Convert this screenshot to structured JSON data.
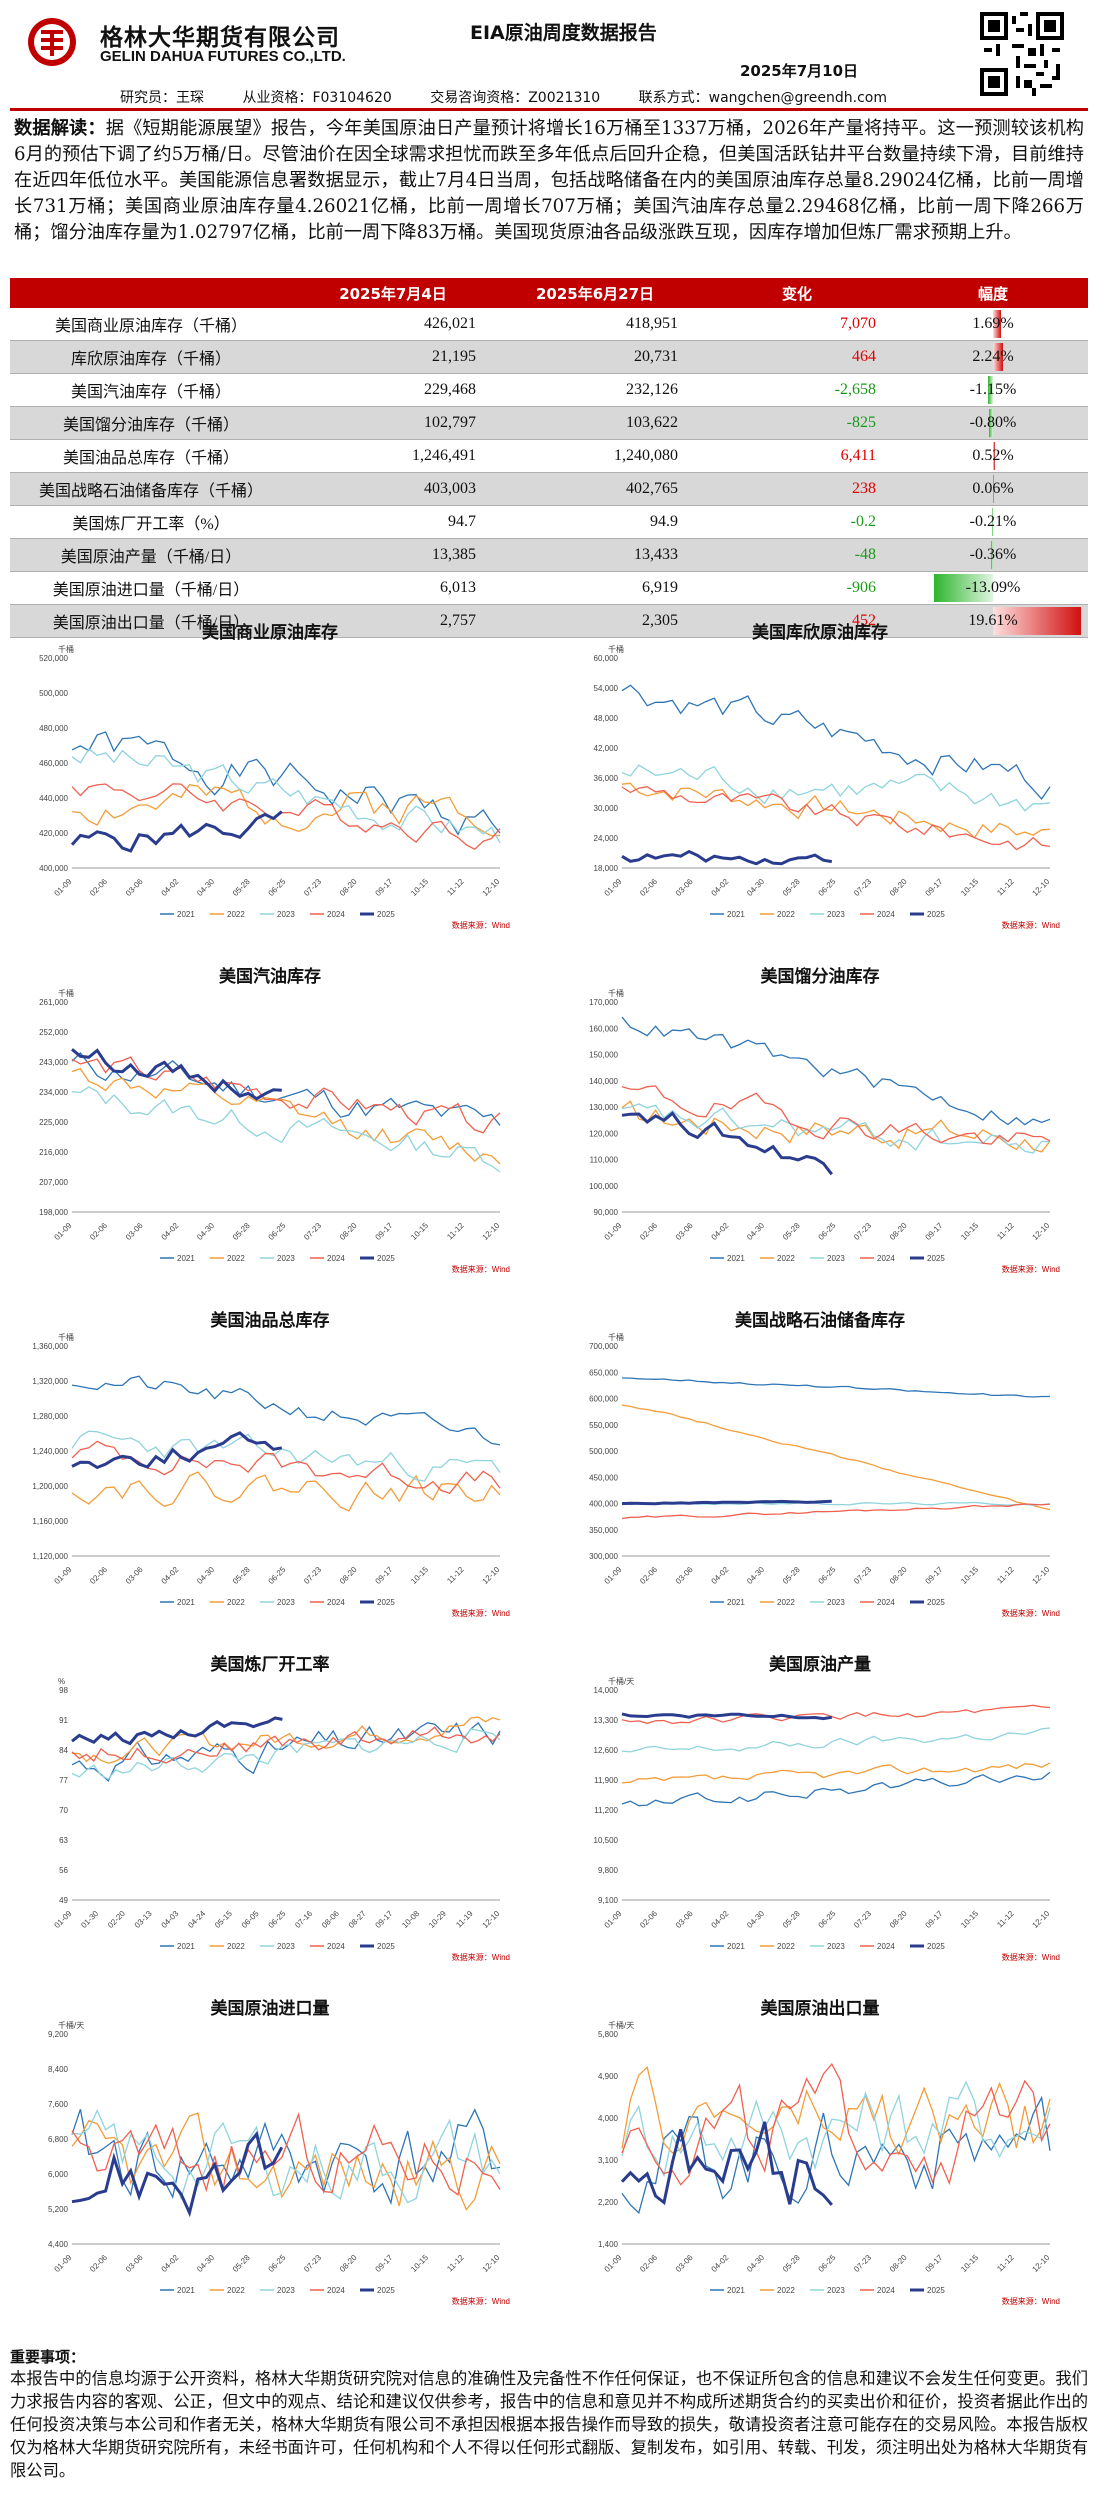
{
  "header": {
    "company_cn": "格林大华期货有限公司",
    "company_en": "GELIN DAHUA FUTURES CO.,LTD.",
    "report_title": "EIA原油周度数据报告",
    "report_date": "2025年7月10日",
    "researcher": "研究员：王琛",
    "qualification": "从业资格：F03104620",
    "trade_qualification": "交易咨询资格：Z0021310",
    "contact": "联系方式：wangchen@greendh.com"
  },
  "intro": {
    "label": "数据解读：",
    "text": "据《短期能源展望》报告，今年美国原油日产量预计将增长16万桶至1337万桶，2026年产量将持平。这一预测较该机构6月的预估下调了约5万桶/日。尽管油价在因全球需求担忧而跌至多年低点后回升企稳，但美国活跃钻井平台数量持续下滑，目前维持在近四年低位水平。美国能源信息署数据显示，截止7月4日当周，包括战略储备在内的美国原油库存总量8.29024亿桶，比前一周增长731万桶；美国商业原油库存量4.26021亿桶，比前一周增长707万桶；美国汽油库存总量2.29468亿桶，比前一周下降266万桶；馏分油库存量为1.02797亿桶，比前一周下降83万桶。美国现货原油各品级涨跌互现，因库存增加但炼厂需求预期上升。"
  },
  "table": {
    "headers": [
      "",
      "2025年7月4日",
      "2025年6月27日",
      "变化",
      "幅度"
    ],
    "rows": [
      {
        "name": "美国商业原油库存（千桶）",
        "cur": "426,021",
        "prev": "418,951",
        "chg": "7,070",
        "pct": "1.69%",
        "pctval": 1.69
      },
      {
        "name": "库欣原油库存（千桶）",
        "cur": "21,195",
        "prev": "20,731",
        "chg": "464",
        "pct": "2.24%",
        "pctval": 2.24
      },
      {
        "name": "美国汽油库存（千桶）",
        "cur": "229,468",
        "prev": "232,126",
        "chg": "-2,658",
        "pct": "-1.15%",
        "pctval": -1.15
      },
      {
        "name": "美国馏分油库存（千桶）",
        "cur": "102,797",
        "prev": "103,622",
        "chg": "-825",
        "pct": "-0.80%",
        "pctval": -0.8
      },
      {
        "name": "美国油品总库存（千桶）",
        "cur": "1,246,491",
        "prev": "1,240,080",
        "chg": "6,411",
        "pct": "0.52%",
        "pctval": 0.52
      },
      {
        "name": "美国战略石油储备库存（千桶）",
        "cur": "403,003",
        "prev": "402,765",
        "chg": "238",
        "pct": "0.06%",
        "pctval": 0.06
      },
      {
        "name": "美国炼厂开工率（%）",
        "cur": "94.7",
        "prev": "94.9",
        "chg": "-0.2",
        "pct": "-0.21%",
        "pctval": -0.21
      },
      {
        "name": "美国原油产量（千桶/日）",
        "cur": "13,385",
        "prev": "13,433",
        "chg": "-48",
        "pct": "-0.36%",
        "pctval": -0.36
      },
      {
        "name": "美国原油进口量（千桶/日）",
        "cur": "6,013",
        "prev": "6,919",
        "chg": "-906",
        "pct": "-13.09%",
        "pctval": -13.09
      },
      {
        "name": "美国原油出口量（千桶/日）",
        "cur": "2,757",
        "prev": "2,305",
        "chg": "452",
        "pct": "19.61%",
        "pctval": 19.61
      }
    ]
  },
  "colors": {
    "c2021": "#2e75b6",
    "c2022": "#f39c38",
    "c2023": "#8fd3de",
    "c2024": "#f0604f",
    "c2025": "#2a3c8e",
    "red": "#c00000"
  },
  "legend_years": [
    "2021",
    "2022",
    "2023",
    "2024",
    "2025"
  ],
  "source_label": "数据来源：Wind",
  "x_ticks": [
    "01-09",
    "02-06",
    "03-06",
    "04-02",
    "04-30",
    "05-28",
    "06-25",
    "07-23",
    "08-20",
    "09-17",
    "10-15",
    "11-12",
    "12-10"
  ],
  "x_ticks_util": [
    "01-09",
    "01-30",
    "02-20",
    "03-13",
    "04-03",
    "04-24",
    "05-15",
    "06-05",
    "06-25",
    "07-16",
    "08-06",
    "08-27",
    "09-17",
    "10-08",
    "10-29",
    "11-19",
    "12-10"
  ],
  "charts": [
    {
      "title": "美国商业原油库存",
      "unit": "千桶",
      "yticks": [
        "520,000",
        "500,000",
        "480,000",
        "460,000",
        "440,000",
        "420,000",
        "400,000"
      ],
      "ylim": [
        400000,
        520000
      ]
    },
    {
      "title": "美国库欣原油库存",
      "unit": "千桶",
      "yticks": [
        "60,000",
        "54,000",
        "48,000",
        "42,000",
        "36,000",
        "30,000",
        "24,000",
        "18,000"
      ],
      "ylim": [
        18000,
        60000
      ]
    },
    {
      "title": "美国汽油库存",
      "unit": "千桶",
      "yticks": [
        "261,000",
        "252,000",
        "243,000",
        "234,000",
        "225,000",
        "216,000",
        "207,000",
        "198,000"
      ],
      "ylim": [
        198000,
        261000
      ]
    },
    {
      "title": "美国馏分油库存",
      "unit": "千桶",
      "yticks": [
        "170,000",
        "160,000",
        "150,000",
        "140,000",
        "130,000",
        "120,000",
        "110,000",
        "100,000",
        "90,000"
      ],
      "ylim": [
        90000,
        170000
      ]
    },
    {
      "title": "美国油品总库存",
      "unit": "千桶",
      "yticks": [
        "1,360,000",
        "1,320,000",
        "1,280,000",
        "1,240,000",
        "1,200,000",
        "1,160,000",
        "1,120,000"
      ],
      "ylim": [
        1120000,
        1360000
      ]
    },
    {
      "title": "美国战略石油储备库存",
      "unit": "千桶",
      "yticks": [
        "700,000",
        "650,000",
        "600,000",
        "550,000",
        "500,000",
        "450,000",
        "400,000",
        "350,000",
        "300,000"
      ],
      "ylim": [
        300000,
        700000
      ]
    },
    {
      "title": "美国炼厂开工率",
      "unit": "%",
      "yticks": [
        "98",
        "91",
        "84",
        "77",
        "70",
        "63",
        "56",
        "49"
      ],
      "ylim": [
        49,
        98
      ]
    },
    {
      "title": "美国原油产量",
      "unit": "千桶/天",
      "yticks": [
        "14,000",
        "13,300",
        "12,600",
        "11,900",
        "11,200",
        "10,500",
        "9,800",
        "9,100"
      ],
      "ylim": [
        9100,
        14000
      ]
    },
    {
      "title": "美国原油进口量",
      "unit": "千桶/天",
      "yticks": [
        "9,200",
        "8,400",
        "7,600",
        "6,800",
        "6,000",
        "5,200",
        "4,400"
      ],
      "ylim": [
        4400,
        9200
      ]
    },
    {
      "title": "美国原油出口量",
      "unit": "千桶/天",
      "yticks": [
        "5,800",
        "4,900",
        "4,000",
        "3,100",
        "2,200",
        "1,400"
      ],
      "ylim": [
        1400,
        5800
      ]
    }
  ],
  "important": {
    "title": "重要事项：",
    "text": "本报告中的信息均源于公开资料，格林大华期货研究院对信息的准确性及完备性不作任何保证，也不保证所包含的信息和建议不会发生任何变更。我们力求报告内容的客观、公正，但文中的观点、结论和建议仅供参考，报告中的信息和意见并不构成所述期货合约的买卖出价和征价，投资者据此作出的任何投资决策与本公司和作者无关，格林大华期货有限公司不承担因根据本报告操作而导致的损失，敬请投资者注意可能存在的交易风险。本报告版权仅为格林大华期货研究院所有，未经书面许可，任何机构和个人不得以任何形式翻版、复制发布，如引用、转载、刊发，须注明出处为格林大华期货有限公司。"
  }
}
